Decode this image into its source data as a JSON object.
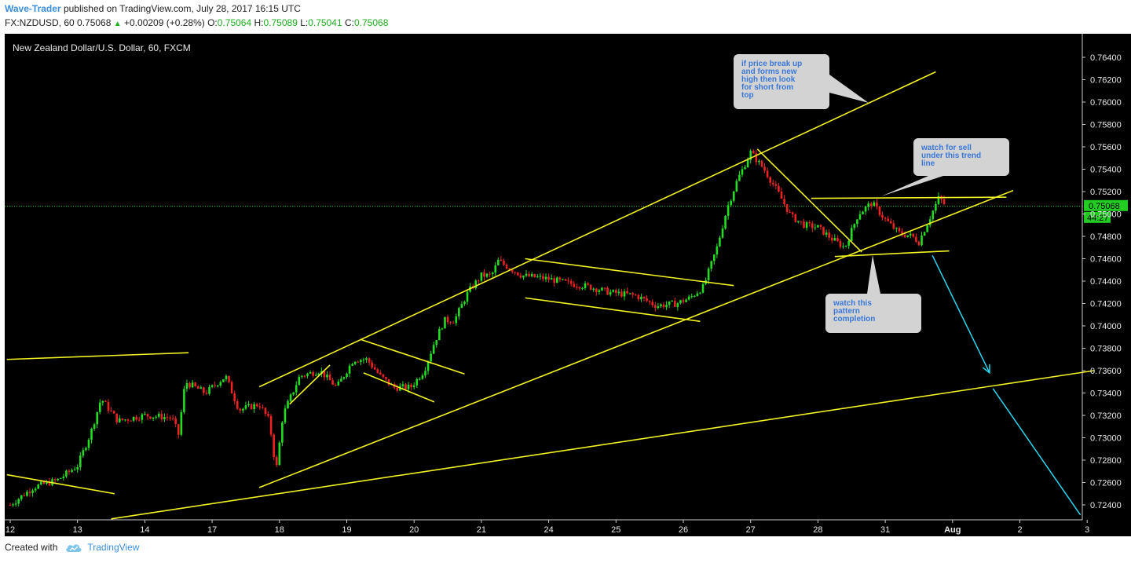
{
  "header": {
    "author": "Wave-Trader",
    "published": "published on TradingView.com, July 28, 2017 16:15 UTC",
    "symbol_line": "FX:NZDUSD, 60  0.75068",
    "change": "+0.00209 (+0.28%)",
    "o_label": "O:",
    "o_value": "0.75064",
    "h_label": "H:",
    "h_value": "0.75089",
    "l_label": "L:",
    "l_value": "0.75041",
    "c_label": "C:",
    "c_value": "0.75068"
  },
  "footer": {
    "created_with": "Created with",
    "brand": "TradingView"
  },
  "colors": {
    "background": "#000000",
    "up_candle": "#22dd22",
    "down_candle": "#ee2222",
    "trendline": "#f2f224",
    "arrow": "#28d8f0",
    "price_line": "#22cc22",
    "callout_bg": "#d3d3d3",
    "callout_text": "#3a78d8"
  },
  "chart_data": {
    "type": "candlestick",
    "title": "New Zealand Dollar/U.S. Dollar, 60, FXCM",
    "ylim": [
      0.7228,
      0.7656
    ],
    "y_ticks": [
      "0.76400",
      "0.76200",
      "0.76000",
      "0.75800",
      "0.75600",
      "0.75400",
      "0.75200",
      "0.75000",
      "0.74800",
      "0.74600",
      "0.74400",
      "0.74200",
      "0.74000",
      "0.73800",
      "0.73600",
      "0.73400",
      "0.73200",
      "0.73000",
      "0.72800",
      "0.72600",
      "0.72400"
    ],
    "x_ticks": [
      "12",
      "13",
      "14",
      "17",
      "18",
      "19",
      "20",
      "21",
      "24",
      "25",
      "26",
      "27",
      "28",
      "31",
      "Aug",
      "2",
      "3"
    ],
    "last_price": "0.75068",
    "countdown": "44:27",
    "price_path": [
      [
        0,
        0.724
      ],
      [
        0.35,
        0.7256
      ],
      [
        0.7,
        0.7262
      ],
      [
        1.0,
        0.7275
      ],
      [
        1.2,
        0.7305
      ],
      [
        1.35,
        0.7335
      ],
      [
        1.6,
        0.7315
      ],
      [
        2.0,
        0.732
      ],
      [
        2.4,
        0.7318
      ],
      [
        2.5,
        0.7303
      ],
      [
        2.6,
        0.735
      ],
      [
        2.9,
        0.734
      ],
      [
        3.2,
        0.7355
      ],
      [
        3.4,
        0.7325
      ],
      [
        3.7,
        0.733
      ],
      [
        3.85,
        0.7315
      ],
      [
        3.95,
        0.727
      ],
      [
        4.05,
        0.732
      ],
      [
        4.3,
        0.7355
      ],
      [
        4.6,
        0.736
      ],
      [
        4.85,
        0.7345
      ],
      [
        5.1,
        0.737
      ],
      [
        5.3,
        0.737
      ],
      [
        5.5,
        0.7355
      ],
      [
        5.7,
        0.7345
      ],
      [
        5.95,
        0.7345
      ],
      [
        6.15,
        0.736
      ],
      [
        6.3,
        0.7385
      ],
      [
        6.45,
        0.7405
      ],
      [
        6.6,
        0.7405
      ],
      [
        6.8,
        0.743
      ],
      [
        7.0,
        0.7445
      ],
      [
        7.15,
        0.7445
      ],
      [
        7.25,
        0.7458
      ],
      [
        7.6,
        0.7445
      ],
      [
        8.0,
        0.7442
      ],
      [
        8.3,
        0.7438
      ],
      [
        8.6,
        0.7435
      ],
      [
        8.9,
        0.743
      ],
      [
        9.3,
        0.7427
      ],
      [
        9.6,
        0.7418
      ],
      [
        9.9,
        0.742
      ],
      [
        10.1,
        0.7425
      ],
      [
        10.3,
        0.7435
      ],
      [
        10.5,
        0.747
      ],
      [
        10.65,
        0.7505
      ],
      [
        10.8,
        0.753
      ],
      [
        11.0,
        0.7555
      ],
      [
        11.2,
        0.754
      ],
      [
        11.4,
        0.752
      ],
      [
        11.6,
        0.7498
      ],
      [
        11.8,
        0.749
      ],
      [
        12.0,
        0.7488
      ],
      [
        12.2,
        0.7478
      ],
      [
        12.4,
        0.747
      ],
      [
        12.6,
        0.75
      ],
      [
        12.8,
        0.751
      ],
      [
        13.0,
        0.7495
      ],
      [
        13.2,
        0.7483
      ],
      [
        13.4,
        0.748
      ],
      [
        13.5,
        0.7475
      ],
      [
        13.65,
        0.7495
      ],
      [
        13.8,
        0.7515
      ],
      [
        13.9,
        0.7507
      ]
    ],
    "trendlines": [
      {
        "label": "",
        "points": [
          [
            -0.05,
            0.737
          ],
          [
            2.65,
            0.7376
          ]
        ]
      },
      {
        "label": "",
        "points": [
          [
            -0.05,
            0.7267
          ],
          [
            1.55,
            0.725
          ]
        ]
      },
      {
        "label": "",
        "points": [
          [
            1.5,
            0.72275
          ],
          [
            16.1,
            0.736
          ]
        ]
      },
      {
        "label": "",
        "points": [
          [
            3.7,
            0.72555
          ],
          [
            14.9,
            0.7521
          ]
        ]
      },
      {
        "label": "",
        "points": [
          [
            3.7,
            0.73455
          ],
          [
            13.75,
            0.7627
          ]
        ]
      },
      {
        "label": "",
        "points": [
          [
            4.15,
            0.733
          ],
          [
            4.75,
            0.7365
          ]
        ]
      },
      {
        "label": "",
        "points": [
          [
            5.2,
            0.7388
          ],
          [
            6.75,
            0.7357
          ]
        ]
      },
      {
        "label": "",
        "points": [
          [
            5.25,
            0.7358
          ],
          [
            6.3,
            0.7332
          ]
        ]
      },
      {
        "label": "",
        "points": [
          [
            7.65,
            0.746
          ],
          [
            10.75,
            0.7436
          ]
        ]
      },
      {
        "label": "",
        "points": [
          [
            7.65,
            0.7425
          ],
          [
            10.25,
            0.7404
          ]
        ]
      },
      {
        "label": "",
        "points": [
          [
            11.1,
            0.7558
          ],
          [
            12.65,
            0.7466
          ]
        ]
      },
      {
        "label": "",
        "points": [
          [
            11.9,
            0.7514
          ],
          [
            14.8,
            0.7515
          ]
        ]
      },
      {
        "label": "",
        "points": [
          [
            12.25,
            0.7462
          ],
          [
            13.95,
            0.7467
          ]
        ]
      }
    ],
    "arrows": [
      {
        "label": "",
        "points": [
          [
            13.7,
            0.7463
          ],
          [
            14.55,
            0.7358
          ]
        ]
      },
      {
        "label": "",
        "points": [
          [
            14.6,
            0.7344
          ],
          [
            15.9,
            0.7231
          ]
        ]
      }
    ],
    "annotations": [
      {
        "lines": [
          "if price break up",
          "and forms new",
          "high then look",
          "for short from",
          "top"
        ],
        "anchor": [
          13.0,
          0.76
        ]
      },
      {
        "lines": [
          "watch for sell",
          "under this trend",
          "line"
        ],
        "anchor": [
          13.05,
          0.7517
        ]
      },
      {
        "lines": [
          "watch this",
          "pattern",
          "completion"
        ],
        "anchor": [
          12.95,
          0.7465
        ]
      }
    ]
  }
}
